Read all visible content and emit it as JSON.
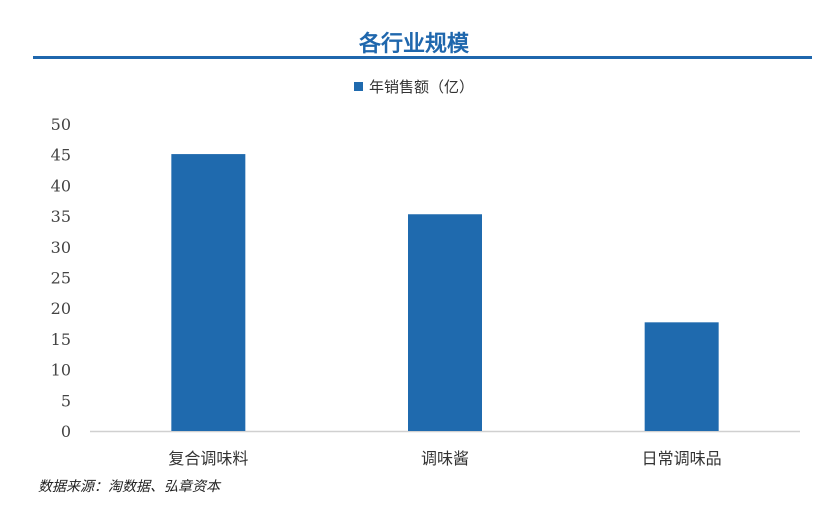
{
  "title": "各行业规模",
  "source": "数据来源：淘数据、弘章资本",
  "chart_data": {
    "type": "bar",
    "title": "各行业规模",
    "categories": [
      "复合调味料",
      "调味酱",
      "日常调味品"
    ],
    "series": [
      {
        "name": "年销售额（亿）",
        "values": [
          45.1,
          35.3,
          17.7
        ],
        "color": "#1f6aae"
      }
    ],
    "yticks": [
      "0",
      "5",
      "10",
      "15",
      "20",
      "25",
      "30",
      "35",
      "40",
      "45",
      "50"
    ],
    "ylim": [
      0,
      50
    ],
    "grid": false,
    "legend": "top"
  }
}
